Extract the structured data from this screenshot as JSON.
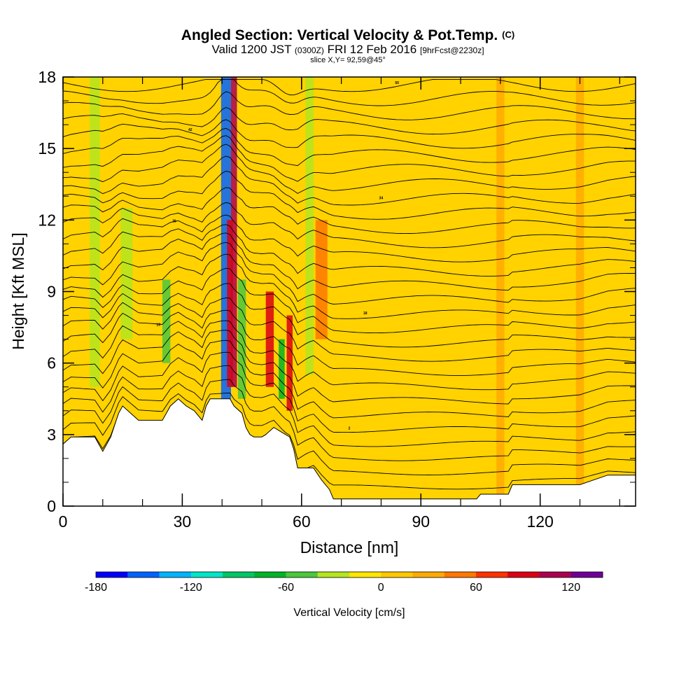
{
  "chart_data": {
    "type": "heatmap",
    "title": "Angled Section: Vertical Velocity & Pot.Temp.",
    "title_unit": "(C)",
    "subtitle_parts": [
      "Valid 1200 JST",
      "(0300Z)",
      "FRI 12 Feb 2016",
      "[9hrFcst@2230z]"
    ],
    "slice_label": "slice X,Y= 92,59@45°",
    "xlabel": "Distance [nm]",
    "ylabel": "Height [Kft MSL]",
    "xlim": [
      0,
      144
    ],
    "ylim": [
      0,
      18
    ],
    "x_ticks": [
      0,
      30,
      60,
      90,
      120
    ],
    "x_tick_labels": [
      "0",
      "30",
      "60",
      "90",
      "120"
    ],
    "y_ticks": [
      0,
      3,
      6,
      9,
      12,
      15,
      18
    ],
    "y_tick_labels": [
      "0",
      "3",
      "6",
      "9",
      "12",
      "15",
      "18"
    ],
    "background_field": "weak ascent 0 to 20 cm/s",
    "bands": [
      {
        "x": 8,
        "w": 2.5,
        "ybot": 5.0,
        "ytop": 18,
        "v": -30
      },
      {
        "x": 16,
        "w": 3,
        "ybot": 7.0,
        "ytop": 12.5,
        "v": -40
      },
      {
        "x": 26,
        "w": 2,
        "ybot": 6.0,
        "ytop": 9.5,
        "v": -60
      },
      {
        "x": 41,
        "w": 2.5,
        "ybot": 4.5,
        "ytop": 18,
        "v": -150
      },
      {
        "x": 43,
        "w": 1.5,
        "ybot": 5.0,
        "ytop": 18,
        "v": 110
      },
      {
        "x": 42,
        "w": 1.5,
        "ybot": 5.0,
        "ytop": 12.0,
        "v": 90
      },
      {
        "x": 45,
        "w": 2,
        "ybot": 4.5,
        "ytop": 9.5,
        "v": -60
      },
      {
        "x": 52,
        "w": 2,
        "ybot": 5.0,
        "ytop": 9.0,
        "v": 90
      },
      {
        "x": 55,
        "w": 1.5,
        "ybot": 4.5,
        "ytop": 7.0,
        "v": -80
      },
      {
        "x": 57,
        "w": 1.5,
        "ybot": 4.0,
        "ytop": 8.0,
        "v": 90
      },
      {
        "x": 62,
        "w": 2,
        "ybot": 5.5,
        "ytop": 18,
        "v": -40
      },
      {
        "x": 65,
        "w": 3,
        "ybot": 7.0,
        "ytop": 12.0,
        "v": 50
      },
      {
        "x": 110,
        "w": 2,
        "ybot": 0.5,
        "ytop": 18,
        "v": 25
      },
      {
        "x": 130,
        "w": 2,
        "ybot": 0.5,
        "ytop": 18,
        "v": 22
      }
    ],
    "terrain_height_kft": [
      [
        0,
        2.6
      ],
      [
        2,
        2.9
      ],
      [
        8,
        2.9
      ],
      [
        9,
        2.6
      ],
      [
        10,
        2.3
      ],
      [
        11,
        2.6
      ],
      [
        12,
        2.9
      ],
      [
        13,
        3.4
      ],
      [
        14,
        3.9
      ],
      [
        15,
        4.2
      ],
      [
        17,
        3.9
      ],
      [
        19,
        3.6
      ],
      [
        25,
        3.6
      ],
      [
        26,
        3.9
      ],
      [
        27,
        4.2
      ],
      [
        29,
        4.5
      ],
      [
        31,
        4.2
      ],
      [
        33,
        4.0
      ],
      [
        35,
        3.6
      ],
      [
        36,
        4.2
      ],
      [
        37,
        4.5
      ],
      [
        42,
        4.5
      ],
      [
        43,
        4.2
      ],
      [
        45,
        3.9
      ],
      [
        46,
        3.3
      ],
      [
        47,
        3.0
      ],
      [
        48,
        2.9
      ],
      [
        50,
        2.9
      ],
      [
        51,
        3.0
      ],
      [
        53,
        3.3
      ],
      [
        55,
        3.1
      ],
      [
        56,
        3.0
      ],
      [
        57,
        2.9
      ],
      [
        58,
        2.4
      ],
      [
        59,
        1.6
      ],
      [
        63,
        1.6
      ],
      [
        65,
        1.1
      ],
      [
        67,
        0.7
      ],
      [
        68,
        0.3
      ],
      [
        100,
        0.3
      ],
      [
        103,
        0.3
      ],
      [
        104,
        0.3
      ],
      [
        105,
        0.5
      ],
      [
        112,
        0.5
      ],
      [
        113,
        0.9
      ],
      [
        130,
        0.9
      ],
      [
        137,
        1.3
      ],
      [
        144,
        1.3
      ]
    ],
    "theta_contours_C": [
      -6,
      -4,
      -2,
      0,
      2,
      4,
      6,
      8,
      10,
      12,
      14,
      16,
      18,
      20,
      22,
      24,
      26,
      28,
      30,
      32,
      34,
      36,
      38,
      40,
      42,
      44,
      46,
      48,
      50
    ],
    "colorbar": {
      "label": "Vertical Velocity [cm/s]",
      "min": -180,
      "max": 140,
      "step": 20,
      "tick_values": [
        -180,
        -120,
        -60,
        0,
        60,
        120
      ],
      "tick_labels": [
        "-180",
        "-120",
        "-60",
        "0",
        "60",
        "120"
      ],
      "colors": [
        "#0000ff",
        "#0063ff",
        "#00b4ff",
        "#00e6c8",
        "#00c864",
        "#00b428",
        "#4bc83c",
        "#b4e61e",
        "#ffe600",
        "#ffc800",
        "#ffaa00",
        "#ff7800",
        "#ff3200",
        "#dc0014",
        "#aa0050",
        "#6e0096"
      ]
    },
    "grid": false,
    "legend": "none"
  }
}
